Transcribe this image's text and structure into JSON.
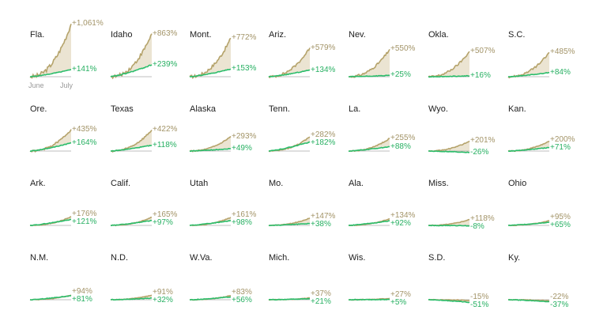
{
  "chart_data": {
    "type": "line",
    "x_tick_labels": [
      "June",
      "July"
    ],
    "colors": {
      "tan": "#b5a36b",
      "tan_fill": "#ebe4d2",
      "green": "#2bbd6b"
    },
    "panels": [
      {
        "state": "Fla.",
        "tan_end": "+1,061%",
        "green_end": "+141%",
        "tan": 1061,
        "green": 141
      },
      {
        "state": "Idaho",
        "tan_end": "+863%",
        "green_end": "+239%",
        "tan": 863,
        "green": 239
      },
      {
        "state": "Mont.",
        "tan_end": "+772%",
        "green_end": "+153%",
        "tan": 772,
        "green": 153
      },
      {
        "state": "Ariz.",
        "tan_end": "+579%",
        "green_end": "+134%",
        "tan": 579,
        "green": 134
      },
      {
        "state": "Nev.",
        "tan_end": "+550%",
        "green_end": "+25%",
        "tan": 550,
        "green": 25
      },
      {
        "state": "Okla.",
        "tan_end": "+507%",
        "green_end": "+16%",
        "tan": 507,
        "green": 16
      },
      {
        "state": "S.C.",
        "tan_end": "+485%",
        "green_end": "+84%",
        "tan": 485,
        "green": 84
      },
      {
        "state": "Ore.",
        "tan_end": "+435%",
        "green_end": "+164%",
        "tan": 435,
        "green": 164
      },
      {
        "state": "Texas",
        "tan_end": "+422%",
        "green_end": "+118%",
        "tan": 422,
        "green": 118
      },
      {
        "state": "Alaska",
        "tan_end": "+293%",
        "green_end": "+49%",
        "tan": 293,
        "green": 49
      },
      {
        "state": "Tenn.",
        "tan_end": "+282%",
        "green_end": "+182%",
        "tan": 282,
        "green": 182
      },
      {
        "state": "La.",
        "tan_end": "+255%",
        "green_end": "+88%",
        "tan": 255,
        "green": 88
      },
      {
        "state": "Wyo.",
        "tan_end": "+201%",
        "green_end": "-26%",
        "tan": 201,
        "green": -26
      },
      {
        "state": "Kan.",
        "tan_end": "+200%",
        "green_end": "+71%",
        "tan": 200,
        "green": 71
      },
      {
        "state": "Ark.",
        "tan_end": "+176%",
        "green_end": "+121%",
        "tan": 176,
        "green": 121
      },
      {
        "state": "Calif.",
        "tan_end": "+165%",
        "green_end": "+97%",
        "tan": 165,
        "green": 97
      },
      {
        "state": "Utah",
        "tan_end": "+161%",
        "green_end": "+98%",
        "tan": 161,
        "green": 98
      },
      {
        "state": "Mo.",
        "tan_end": "+147%",
        "green_end": "+38%",
        "tan": 147,
        "green": 38
      },
      {
        "state": "Ala.",
        "tan_end": "+134%",
        "green_end": "+92%",
        "tan": 134,
        "green": 92
      },
      {
        "state": "Miss.",
        "tan_end": "+118%",
        "green_end": "-8%",
        "tan": 118,
        "green": -8
      },
      {
        "state": "Ohio",
        "tan_end": "+95%",
        "green_end": "+65%",
        "tan": 95,
        "green": 65
      },
      {
        "state": "N.M.",
        "tan_end": "+94%",
        "green_end": "+81%",
        "tan": 94,
        "green": 81
      },
      {
        "state": "N.D.",
        "tan_end": "+91%",
        "green_end": "+32%",
        "tan": 91,
        "green": 32
      },
      {
        "state": "W.Va.",
        "tan_end": "+83%",
        "green_end": "+56%",
        "tan": 83,
        "green": 56
      },
      {
        "state": "Mich.",
        "tan_end": "+37%",
        "green_end": "+21%",
        "tan": 37,
        "green": 21
      },
      {
        "state": "Wis.",
        "tan_end": "+27%",
        "green_end": "+5%",
        "tan": 27,
        "green": 5
      },
      {
        "state": "S.D.",
        "tan_end": "-15%",
        "green_end": "-51%",
        "tan": -15,
        "green": -51
      },
      {
        "state": "Ky.",
        "tan_end": "-22%",
        "green_end": "-37%",
        "tan": -22,
        "green": -37
      }
    ]
  }
}
